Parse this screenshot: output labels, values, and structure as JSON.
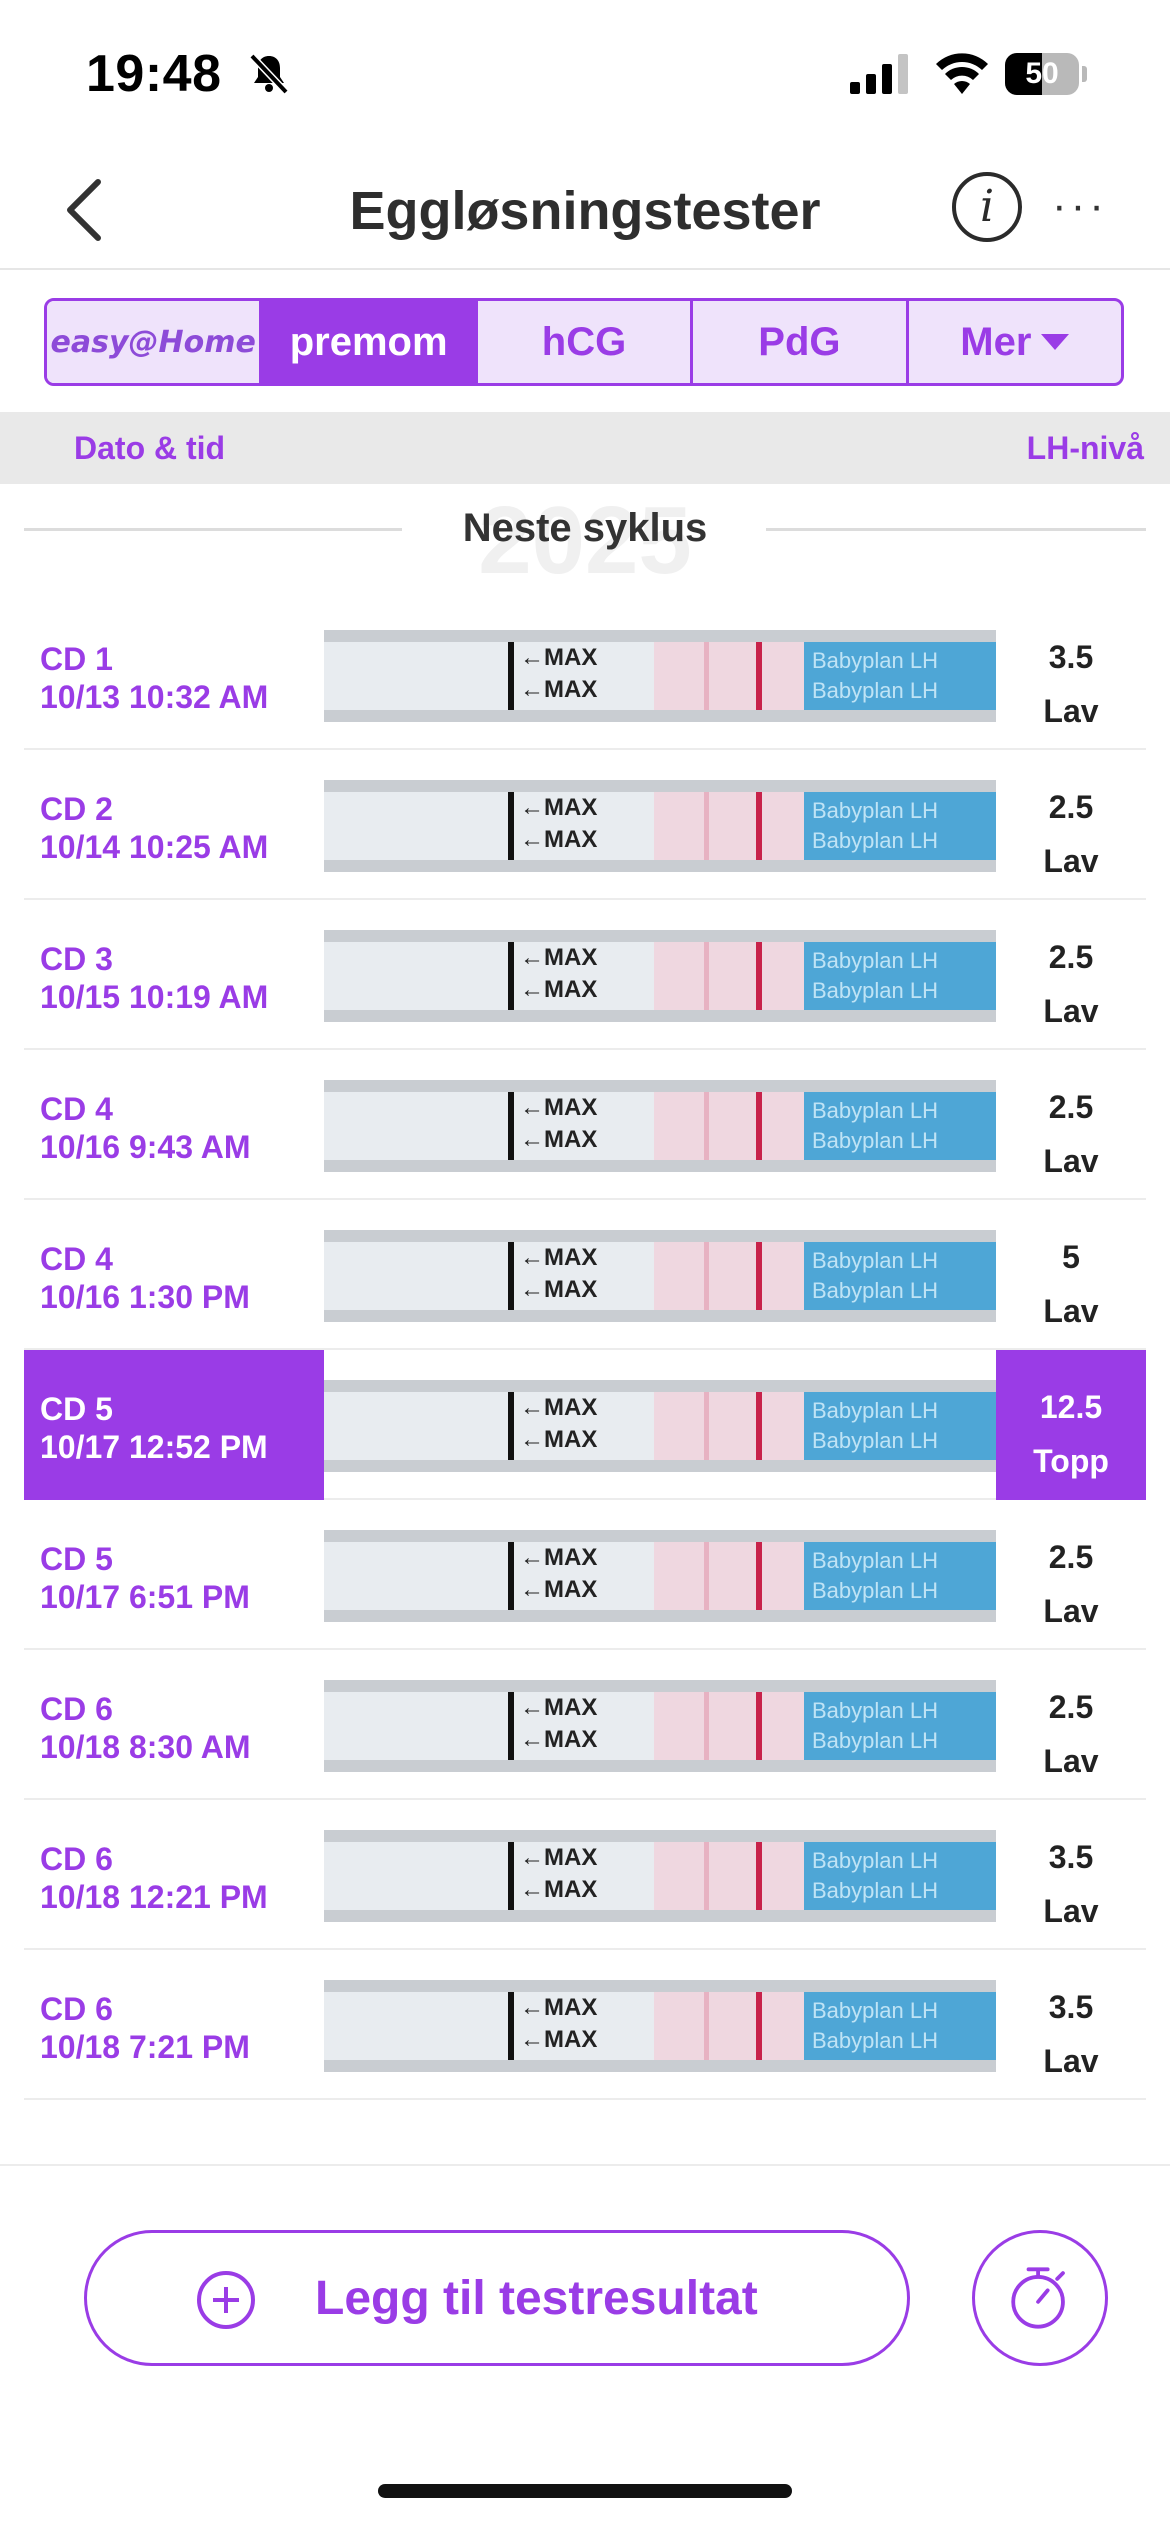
{
  "status_bar": {
    "time": "19:48",
    "battery_text": "50",
    "battery_level": 0.5
  },
  "nav": {
    "title": "Eggløsningstester",
    "info_label": "i",
    "more_label": "···"
  },
  "tabs": [
    {
      "label": "easy@Home",
      "selected": false
    },
    {
      "label": "premom",
      "selected": true
    },
    {
      "label": "hCG",
      "selected": false
    },
    {
      "label": "PdG",
      "selected": false
    },
    {
      "label": "Mer",
      "selected": false
    }
  ],
  "columns": {
    "left": "Dato & tid",
    "right": "LH-nivå"
  },
  "cycle": {
    "year_watermark": "2025",
    "label": "Neste syklus"
  },
  "results": [
    {
      "cd": "CD 1",
      "datetime": "10/13 10:32 AM",
      "value": "3.5",
      "level": "Lav",
      "peak": false
    },
    {
      "cd": "CD 2",
      "datetime": "10/14 10:25 AM",
      "value": "2.5",
      "level": "Lav",
      "peak": false
    },
    {
      "cd": "CD 3",
      "datetime": "10/15 10:19 AM",
      "value": "2.5",
      "level": "Lav",
      "peak": false
    },
    {
      "cd": "CD 4",
      "datetime": "10/16 9:43 AM",
      "value": "2.5",
      "level": "Lav",
      "peak": false
    },
    {
      "cd": "CD 4",
      "datetime": "10/16 1:30 PM",
      "value": "5",
      "level": "Lav",
      "peak": false
    },
    {
      "cd": "CD 5",
      "datetime": "10/17 12:52 PM",
      "value": "12.5",
      "level": "Topp",
      "peak": true
    },
    {
      "cd": "CD 5",
      "datetime": "10/17 6:51 PM",
      "value": "2.5",
      "level": "Lav",
      "peak": false
    },
    {
      "cd": "CD 6",
      "datetime": "10/18 8:30 AM",
      "value": "2.5",
      "level": "Lav",
      "peak": false
    },
    {
      "cd": "CD 6",
      "datetime": "10/18 12:21 PM",
      "value": "3.5",
      "level": "Lav",
      "peak": false
    },
    {
      "cd": "CD 6",
      "datetime": "10/18 7:21 PM",
      "value": "3.5",
      "level": "Lav",
      "peak": false
    }
  ],
  "strip_text": {
    "max": "←MAX",
    "brand": "Babyplan LH"
  },
  "actions": {
    "add_label": "Legg til testresultat"
  },
  "colors": {
    "accent": "#9a3ce6",
    "tab_bg": "#efe3fb",
    "header_bg": "#e9e9e9"
  },
  "icons": {
    "back": "chevron-left-icon",
    "info": "info-icon",
    "more": "more-icon",
    "bell": "bell-slash-icon",
    "add": "plus-circle-icon",
    "timer": "timer-icon"
  }
}
